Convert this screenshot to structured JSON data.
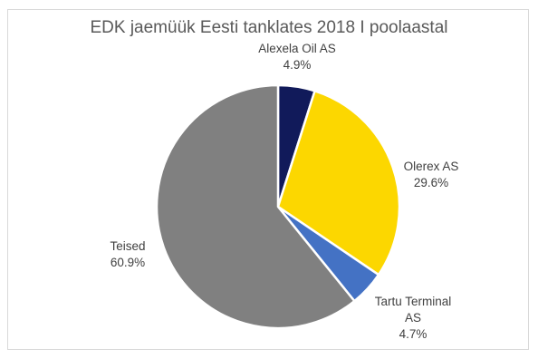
{
  "chart_data": {
    "type": "pie",
    "title": "EDK jaemüük Eesti tanklates 2018 I poolaastal",
    "slices": [
      {
        "name": "Alexela Oil AS",
        "label_lines": [
          "Alexela Oil AS"
        ],
        "value_label": "4.9%",
        "value": 4.9,
        "color": "#111a5a"
      },
      {
        "name": "Olerex AS",
        "label_lines": [
          "Olerex AS"
        ],
        "value_label": "29.6%",
        "value": 29.6,
        "color": "#fcd700"
      },
      {
        "name": "Tartu Terminal AS",
        "label_lines": [
          "Tartu Terminal",
          "AS"
        ],
        "value_label": "4.7%",
        "value": 4.7,
        "color": "#4472c4"
      },
      {
        "name": "Teised",
        "label_lines": [
          "Teised"
        ],
        "value_label": "60.9%",
        "value": 60.9,
        "color": "#808080"
      }
    ],
    "legend": "none",
    "start_angle": "12 o'clock",
    "direction": "clockwise"
  }
}
